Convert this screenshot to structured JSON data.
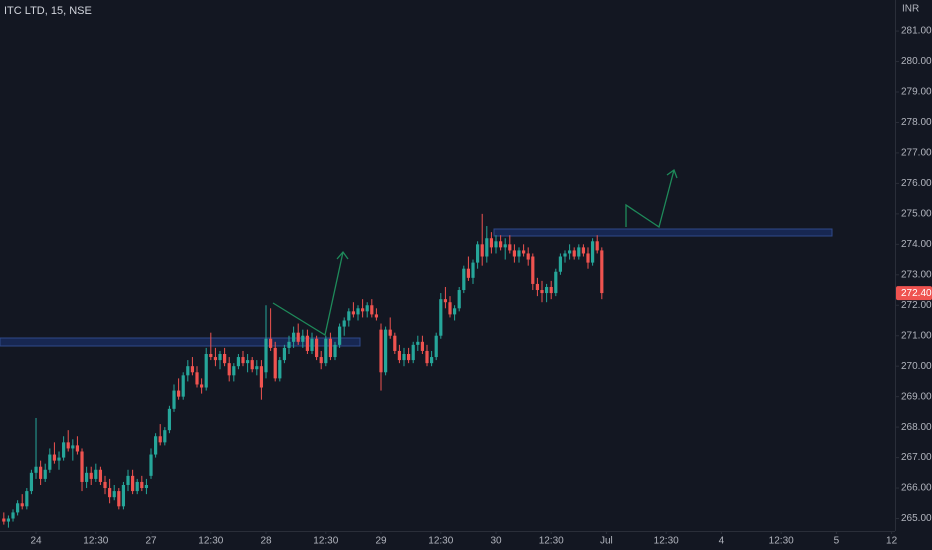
{
  "chart_data": {
    "type": "candlestick",
    "title": "ITC LTD, 15, NSE",
    "currency": "INR",
    "up_color": "#26a69a",
    "down_color": "#ef5350",
    "grid": false,
    "last_price": {
      "value": 272.4,
      "label": "272.40"
    },
    "ylim": [
      264.59,
      282.02
    ],
    "yticks": [
      {
        "value": 265,
        "label": "265.00"
      },
      {
        "value": 266,
        "label": "266.00"
      },
      {
        "value": 267,
        "label": "267.00"
      },
      {
        "value": 268,
        "label": "268.00"
      },
      {
        "value": 269,
        "label": "269.00"
      },
      {
        "value": 270,
        "label": "270.00"
      },
      {
        "value": 271,
        "label": "271.00"
      },
      {
        "value": 272,
        "label": "272.00"
      },
      {
        "value": 273,
        "label": "273.00"
      },
      {
        "value": 274,
        "label": "274.00"
      },
      {
        "value": 275,
        "label": "275.00"
      },
      {
        "value": 276,
        "label": "276.00"
      },
      {
        "value": 277,
        "label": "277.00"
      },
      {
        "value": 278,
        "label": "278.00"
      },
      {
        "value": 279,
        "label": "279.00"
      },
      {
        "value": 280,
        "label": "280.00"
      },
      {
        "value": 281,
        "label": "281.00"
      }
    ],
    "xlim": [
      -0.83,
      193.74
    ],
    "xticks": [
      {
        "value": 7,
        "label": "24"
      },
      {
        "value": 20,
        "label": "12:30"
      },
      {
        "value": 32,
        "label": "27"
      },
      {
        "value": 45,
        "label": "12:30"
      },
      {
        "value": 57,
        "label": "28"
      },
      {
        "value": 70,
        "label": "12:30"
      },
      {
        "value": 82,
        "label": "29"
      },
      {
        "value": 95,
        "label": "12:30"
      },
      {
        "value": 107,
        "label": "30"
      },
      {
        "value": 119,
        "label": "12:30"
      },
      {
        "value": 131,
        "label": "Jul"
      },
      {
        "value": 144,
        "label": "12:30"
      },
      {
        "value": 156,
        "label": "4"
      },
      {
        "value": 169,
        "label": "12:30"
      },
      {
        "value": 181,
        "label": "5"
      },
      {
        "value": 193,
        "label": "12"
      }
    ],
    "candles": [
      [
        265.0,
        265.2,
        264.8,
        264.9
      ],
      [
        264.9,
        265.1,
        264.7,
        265.0
      ],
      [
        265.0,
        265.3,
        264.9,
        265.2
      ],
      [
        265.2,
        265.6,
        265.1,
        265.5
      ],
      [
        265.5,
        265.8,
        265.3,
        265.4
      ],
      [
        265.4,
        266.0,
        265.3,
        265.9
      ],
      [
        265.9,
        266.6,
        265.8,
        266.5
      ],
      [
        266.5,
        268.3,
        266.3,
        266.7
      ],
      [
        266.7,
        266.9,
        266.1,
        266.3
      ],
      [
        266.3,
        266.8,
        266.2,
        266.6
      ],
      [
        266.6,
        267.3,
        266.5,
        267.1
      ],
      [
        267.1,
        267.5,
        266.8,
        266.9
      ],
      [
        266.9,
        267.2,
        266.6,
        267.0
      ],
      [
        267.0,
        267.7,
        266.9,
        267.5
      ],
      [
        267.5,
        267.9,
        267.2,
        267.3
      ],
      [
        267.3,
        267.6,
        266.9,
        267.4
      ],
      [
        267.4,
        267.7,
        267.1,
        267.2
      ],
      [
        267.2,
        267.3,
        265.9,
        266.2
      ],
      [
        266.2,
        266.7,
        266.0,
        266.5
      ],
      [
        266.5,
        266.7,
        266.1,
        266.3
      ],
      [
        266.3,
        266.8,
        266.2,
        266.6
      ],
      [
        266.6,
        266.7,
        266.1,
        266.2
      ],
      [
        266.2,
        266.4,
        265.8,
        266.0
      ],
      [
        266.0,
        266.3,
        265.5,
        265.7
      ],
      [
        265.7,
        266.1,
        265.6,
        265.9
      ],
      [
        265.9,
        266.0,
        265.3,
        265.4
      ],
      [
        265.4,
        266.2,
        265.3,
        266.1
      ],
      [
        266.1,
        266.6,
        265.9,
        266.4
      ],
      [
        266.4,
        266.6,
        265.8,
        265.9
      ],
      [
        265.9,
        266.3,
        265.8,
        266.2
      ],
      [
        266.2,
        266.4,
        265.9,
        266.0
      ],
      [
        266.0,
        266.3,
        265.8,
        266.1
      ],
      [
        266.4,
        267.3,
        266.3,
        267.1
      ],
      [
        267.1,
        267.8,
        267.0,
        267.7
      ],
      [
        267.7,
        268.1,
        267.4,
        267.5
      ],
      [
        267.5,
        268.0,
        267.4,
        267.9
      ],
      [
        267.9,
        268.7,
        267.8,
        268.6
      ],
      [
        268.6,
        269.4,
        268.5,
        269.2
      ],
      [
        269.2,
        269.6,
        268.9,
        269.0
      ],
      [
        269.0,
        269.8,
        268.9,
        269.7
      ],
      [
        269.7,
        270.2,
        269.5,
        270.0
      ],
      [
        270.0,
        270.3,
        269.7,
        269.8
      ],
      [
        269.8,
        270.0,
        269.3,
        269.4
      ],
      [
        269.4,
        269.6,
        269.1,
        269.3
      ],
      [
        269.3,
        270.6,
        269.2,
        270.4
      ],
      [
        270.4,
        271.1,
        270.2,
        270.3
      ],
      [
        270.3,
        270.6,
        270.0,
        270.2
      ],
      [
        270.2,
        270.5,
        269.9,
        270.4
      ],
      [
        270.4,
        270.6,
        270.0,
        270.1
      ],
      [
        270.1,
        270.3,
        269.5,
        269.7
      ],
      [
        269.7,
        270.1,
        269.5,
        270.0
      ],
      [
        270.0,
        270.4,
        269.9,
        270.3
      ],
      [
        270.3,
        270.5,
        270.0,
        270.1
      ],
      [
        270.1,
        270.4,
        269.8,
        270.2
      ],
      [
        270.2,
        270.3,
        269.8,
        269.9
      ],
      [
        269.9,
        270.2,
        269.7,
        270.0
      ],
      [
        270.0,
        270.2,
        268.9,
        269.3
      ],
      [
        269.8,
        272.0,
        269.6,
        270.9
      ],
      [
        270.9,
        271.9,
        270.5,
        270.6
      ],
      [
        270.6,
        270.8,
        269.5,
        269.6
      ],
      [
        269.6,
        270.3,
        269.5,
        270.2
      ],
      [
        270.2,
        270.7,
        270.1,
        270.6
      ],
      [
        270.6,
        271.0,
        270.4,
        270.8
      ],
      [
        270.8,
        271.3,
        270.6,
        271.1
      ],
      [
        271.1,
        271.4,
        270.7,
        270.8
      ],
      [
        270.8,
        271.2,
        270.6,
        271.0
      ],
      [
        271.0,
        271.2,
        270.4,
        270.5
      ],
      [
        270.5,
        271.1,
        270.4,
        270.9
      ],
      [
        270.9,
        271.0,
        270.2,
        270.3
      ],
      [
        270.3,
        270.5,
        269.9,
        270.1
      ],
      [
        270.1,
        271.0,
        270.0,
        270.9
      ],
      [
        270.9,
        271.1,
        270.2,
        270.3
      ],
      [
        270.3,
        270.8,
        270.2,
        270.7
      ],
      [
        270.7,
        271.4,
        270.6,
        271.3
      ],
      [
        271.3,
        271.6,
        271.0,
        271.5
      ],
      [
        271.5,
        271.9,
        271.3,
        271.8
      ],
      [
        271.8,
        272.1,
        271.6,
        271.7
      ],
      [
        271.7,
        272.0,
        271.5,
        271.9
      ],
      [
        271.9,
        272.2,
        271.6,
        271.8
      ],
      [
        271.8,
        272.1,
        271.6,
        272.0
      ],
      [
        272.0,
        272.2,
        271.6,
        271.7
      ],
      [
        271.7,
        271.9,
        271.5,
        271.6
      ],
      [
        271.2,
        271.4,
        269.2,
        269.8
      ],
      [
        269.8,
        271.3,
        269.7,
        271.2
      ],
      [
        271.2,
        271.6,
        270.9,
        271.0
      ],
      [
        271.0,
        271.1,
        270.4,
        270.5
      ],
      [
        270.5,
        270.7,
        270.1,
        270.2
      ],
      [
        270.2,
        270.6,
        270.0,
        270.4
      ],
      [
        270.4,
        270.6,
        270.1,
        270.2
      ],
      [
        270.2,
        270.8,
        270.1,
        270.7
      ],
      [
        270.7,
        271.0,
        270.5,
        270.8
      ],
      [
        270.8,
        271.0,
        270.4,
        270.5
      ],
      [
        270.5,
        270.7,
        270.0,
        270.1
      ],
      [
        270.1,
        270.5,
        270.0,
        270.3
      ],
      [
        270.3,
        271.1,
        270.2,
        271.0
      ],
      [
        271.0,
        272.4,
        270.9,
        272.2
      ],
      [
        272.2,
        272.6,
        271.9,
        272.1
      ],
      [
        272.1,
        272.3,
        271.6,
        271.7
      ],
      [
        271.7,
        272.0,
        271.5,
        271.9
      ],
      [
        271.9,
        272.6,
        271.8,
        272.5
      ],
      [
        272.5,
        273.3,
        272.4,
        273.2
      ],
      [
        273.2,
        273.6,
        272.8,
        272.9
      ],
      [
        272.9,
        273.5,
        272.7,
        273.4
      ],
      [
        273.4,
        274.1,
        273.2,
        274.0
      ],
      [
        274.0,
        275.0,
        273.3,
        273.6
      ],
      [
        273.6,
        274.6,
        273.4,
        274.2
      ],
      [
        274.2,
        274.4,
        273.7,
        273.9
      ],
      [
        273.9,
        274.3,
        273.7,
        274.1
      ],
      [
        274.1,
        274.3,
        273.8,
        273.9
      ],
      [
        273.9,
        274.2,
        273.5,
        274.0
      ],
      [
        274.0,
        274.3,
        273.7,
        273.8
      ],
      [
        273.8,
        274.0,
        273.4,
        273.6
      ],
      [
        273.6,
        273.9,
        273.4,
        273.8
      ],
      [
        273.8,
        274.0,
        273.6,
        273.7
      ],
      [
        273.7,
        273.9,
        273.3,
        273.5
      ],
      [
        273.6,
        273.7,
        272.5,
        272.7
      ],
      [
        272.7,
        272.9,
        272.3,
        272.5
      ],
      [
        272.5,
        272.8,
        272.1,
        272.4
      ],
      [
        272.4,
        272.7,
        272.1,
        272.6
      ],
      [
        272.6,
        272.8,
        272.2,
        272.4
      ],
      [
        272.4,
        273.2,
        272.3,
        273.1
      ],
      [
        273.1,
        273.7,
        273.0,
        273.6
      ],
      [
        273.6,
        273.8,
        273.4,
        273.7
      ],
      [
        273.7,
        274.0,
        273.5,
        273.8
      ],
      [
        273.8,
        273.9,
        273.5,
        273.6
      ],
      [
        273.6,
        274.0,
        273.5,
        273.9
      ],
      [
        273.9,
        274.0,
        273.6,
        273.7
      ],
      [
        273.7,
        273.9,
        273.2,
        273.4
      ],
      [
        273.4,
        274.2,
        273.3,
        274.1
      ],
      [
        274.1,
        274.3,
        273.7,
        273.8
      ],
      [
        273.8,
        273.9,
        272.2,
        272.4
      ]
    ]
  }
}
